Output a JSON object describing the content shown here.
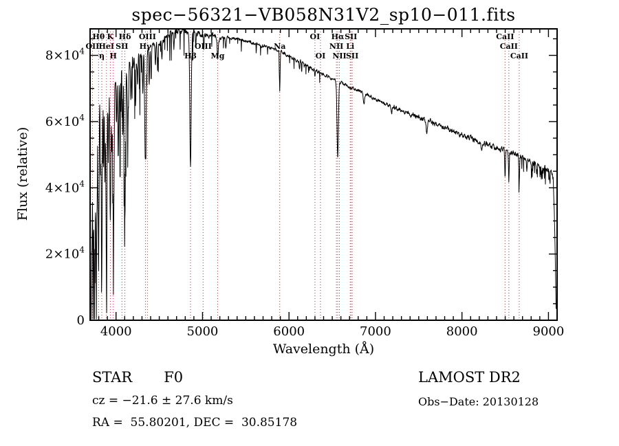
{
  "title": "spec−56321−VB058N31V2_sp10−011.fits",
  "annotations": {
    "classification": "STAR",
    "subclass": "F0",
    "survey": "LAMOST DR2",
    "cz": "cz = −21.6 ± 27.6 km/s",
    "obs_date": "Obs−Date: 20130128",
    "ra_dec": "RA =  55.80201, DEC =  30.85178"
  },
  "chart_data": {
    "type": "line",
    "title": "spec−56321−VB058N31V2_sp10−011.fits",
    "xlabel": "Wavelength (Å)",
    "ylabel": "Flux (relative)",
    "xlim": [
      3700,
      9100
    ],
    "ylim": [
      0,
      88000
    ],
    "x_minor_step": 100,
    "y_minor_step": 5000,
    "grid": false,
    "line_color": "#000000",
    "marker_color": "#aa3434",
    "xticks": [
      {
        "value": 4000,
        "label": "4000"
      },
      {
        "value": 5000,
        "label": "5000"
      },
      {
        "value": 6000,
        "label": "6000"
      },
      {
        "value": 7000,
        "label": "7000"
      },
      {
        "value": 8000,
        "label": "8000"
      },
      {
        "value": 9000,
        "label": "9000"
      }
    ],
    "yticks": [
      {
        "value": 0,
        "label": "0"
      },
      {
        "value": 20000,
        "label": "2×10",
        "exp": "4"
      },
      {
        "value": 40000,
        "label": "4×10",
        "exp": "4"
      },
      {
        "value": 60000,
        "label": "6×10",
        "exp": "4"
      },
      {
        "value": 80000,
        "label": "8×10",
        "exp": "4"
      }
    ],
    "spectral_lines": [
      {
        "wavelength": 3727,
        "label": "OII",
        "row": 2
      },
      {
        "wavelength": 3798,
        "label": "Hθ",
        "row": 1
      },
      {
        "wavelength": 3835,
        "label": "η",
        "row": 3
      },
      {
        "wavelength": 3889,
        "label": "HeI",
        "row": 2
      },
      {
        "wavelength": 3934,
        "label": "K",
        "row": 1
      },
      {
        "wavelength": 3968,
        "label": "H",
        "row": 3
      },
      {
        "wavelength": 4068,
        "label": "SII",
        "row": 2
      },
      {
        "wavelength": 4102,
        "label": "Hδ",
        "row": 1
      },
      {
        "wavelength": 4340,
        "label": "Hγ",
        "row": 2
      },
      {
        "wavelength": 4363,
        "label": "OIII",
        "row": 1
      },
      {
        "wavelength": 4861,
        "label": "Hβ",
        "row": 3
      },
      {
        "wavelength": 5007,
        "label": "OIII",
        "row": 2
      },
      {
        "wavelength": 5175,
        "label": "Mg",
        "row": 3
      },
      {
        "wavelength": 5893,
        "label": "Na",
        "row": 2
      },
      {
        "wavelength": 6300,
        "label": "OI",
        "row": 1
      },
      {
        "wavelength": 6364,
        "label": "OI",
        "row": 3
      },
      {
        "wavelength": 6548,
        "label": "NII",
        "row": 2
      },
      {
        "wavelength": 6563,
        "label": "Hα",
        "row": 1
      },
      {
        "wavelength": 6583,
        "label": "NII",
        "row": 3
      },
      {
        "wavelength": 6708,
        "label": "Li",
        "row": 2
      },
      {
        "wavelength": 6716,
        "label": "SII",
        "row": 1
      },
      {
        "wavelength": 6731,
        "label": "SII",
        "row": 3
      },
      {
        "wavelength": 8498,
        "label": "CaII",
        "row": 1
      },
      {
        "wavelength": 8542,
        "label": "CaII",
        "row": 2
      },
      {
        "wavelength": 8662,
        "label": "CaII",
        "row": 3
      }
    ],
    "continuum": [
      [
        3700,
        60000
      ],
      [
        3720,
        63000
      ],
      [
        3760,
        66000
      ],
      [
        3800,
        68000
      ],
      [
        3850,
        69500
      ],
      [
        3900,
        71000
      ],
      [
        3950,
        72000
      ],
      [
        4000,
        73500
      ],
      [
        4050,
        74500
      ],
      [
        4100,
        75500
      ],
      [
        4150,
        77000
      ],
      [
        4200,
        78000
      ],
      [
        4250,
        79500
      ],
      [
        4300,
        80500
      ],
      [
        4350,
        81500
      ],
      [
        4400,
        82300
      ],
      [
        4450,
        83000
      ],
      [
        4500,
        83800
      ],
      [
        4550,
        84800
      ],
      [
        4600,
        85800
      ],
      [
        4650,
        86800
      ],
      [
        4700,
        87400
      ],
      [
        4750,
        87600
      ],
      [
        4800,
        87400
      ],
      [
        4850,
        87100
      ],
      [
        4900,
        86900
      ],
      [
        4950,
        86600
      ],
      [
        5000,
        86200
      ],
      [
        5100,
        85800
      ],
      [
        5200,
        85200
      ],
      [
        5300,
        85400
      ],
      [
        5400,
        85100
      ],
      [
        5500,
        84300
      ],
      [
        5600,
        83600
      ],
      [
        5700,
        82900
      ],
      [
        5800,
        82200
      ],
      [
        5900,
        81200
      ],
      [
        6000,
        79800
      ],
      [
        6100,
        78400
      ],
      [
        6200,
        77000
      ],
      [
        6300,
        75600
      ],
      [
        6400,
        74300
      ],
      [
        6500,
        73000
      ],
      [
        6600,
        71700
      ],
      [
        6700,
        70500
      ],
      [
        6800,
        69300
      ],
      [
        6900,
        68100
      ],
      [
        7000,
        66800
      ],
      [
        7100,
        65600
      ],
      [
        7200,
        64500
      ],
      [
        7300,
        63400
      ],
      [
        7400,
        62300
      ],
      [
        7500,
        61300
      ],
      [
        7600,
        60300
      ],
      [
        7700,
        59200
      ],
      [
        7800,
        58200
      ],
      [
        7900,
        57100
      ],
      [
        8000,
        56000
      ],
      [
        8100,
        55000
      ],
      [
        8200,
        54000
      ],
      [
        8300,
        53000
      ],
      [
        8400,
        52200
      ],
      [
        8500,
        51400
      ],
      [
        8600,
        50300
      ],
      [
        8700,
        49200
      ],
      [
        8800,
        47900
      ],
      [
        8900,
        46700
      ],
      [
        9000,
        45600
      ],
      [
        9030,
        45000
      ],
      [
        9055,
        43000
      ],
      [
        9070,
        30000
      ],
      [
        9082,
        14000
      ],
      [
        9089,
        2500
      ]
    ],
    "absorption_lines": [
      [
        3706,
        42000,
        4
      ],
      [
        3712,
        55000,
        4
      ],
      [
        3722,
        38000,
        4
      ],
      [
        3734,
        56000,
        4
      ],
      [
        3745,
        30000,
        4
      ],
      [
        3750,
        48000,
        4
      ],
      [
        3759,
        28000,
        4
      ],
      [
        3771,
        56000,
        5
      ],
      [
        3782,
        24000,
        4
      ],
      [
        3798,
        56000,
        5
      ],
      [
        3820,
        26000,
        4
      ],
      [
        3835,
        57000,
        5
      ],
      [
        3856,
        22000,
        4
      ],
      [
        3871,
        28000,
        4
      ],
      [
        3889,
        54000,
        6
      ],
      [
        3910,
        24000,
        4
      ],
      [
        3934,
        41000,
        6
      ],
      [
        3952,
        20000,
        4
      ],
      [
        3970,
        50000,
        7
      ],
      [
        4005,
        16000,
        4
      ],
      [
        4026,
        26000,
        5
      ],
      [
        4045,
        14000,
        4
      ],
      [
        4077,
        18000,
        4
      ],
      [
        4102,
        45000,
        7
      ],
      [
        4132,
        12000,
        4
      ],
      [
        4144,
        13000,
        4
      ],
      [
        4172,
        10000,
        4
      ],
      [
        4226,
        14000,
        4
      ],
      [
        4250,
        9000,
        4
      ],
      [
        4271,
        10000,
        4
      ],
      [
        4310,
        12000,
        4
      ],
      [
        4340,
        33000,
        8
      ],
      [
        4383,
        12000,
        4
      ],
      [
        4405,
        9000,
        4
      ],
      [
        4455,
        7000,
        4
      ],
      [
        4481,
        8000,
        4
      ],
      [
        4531,
        6000,
        4
      ],
      [
        4668,
        5000,
        4
      ],
      [
        4861,
        40000,
        8
      ],
      [
        4921,
        5000,
        4
      ],
      [
        5015,
        4500,
        4
      ],
      [
        5175,
        5500,
        6
      ],
      [
        5270,
        3500,
        5
      ],
      [
        5893,
        12000,
        4
      ],
      [
        6122,
        2500,
        4
      ],
      [
        6300,
        2000,
        4
      ],
      [
        6563,
        23000,
        8
      ],
      [
        6867,
        3500,
        6
      ],
      [
        7186,
        2500,
        5
      ],
      [
        7594,
        4500,
        7
      ],
      [
        8226,
        2500,
        5
      ],
      [
        8498,
        7500,
        4
      ],
      [
        8542,
        9000,
        4
      ],
      [
        8662,
        9000,
        4
      ],
      [
        8750,
        4500,
        4
      ],
      [
        8806,
        3500,
        4
      ],
      [
        8865,
        3500,
        4
      ],
      [
        8920,
        3000,
        4
      ],
      [
        9015,
        3000,
        4
      ]
    ],
    "noise": {
      "seed": 7,
      "blue": 2400,
      "end": 9089
    }
  }
}
